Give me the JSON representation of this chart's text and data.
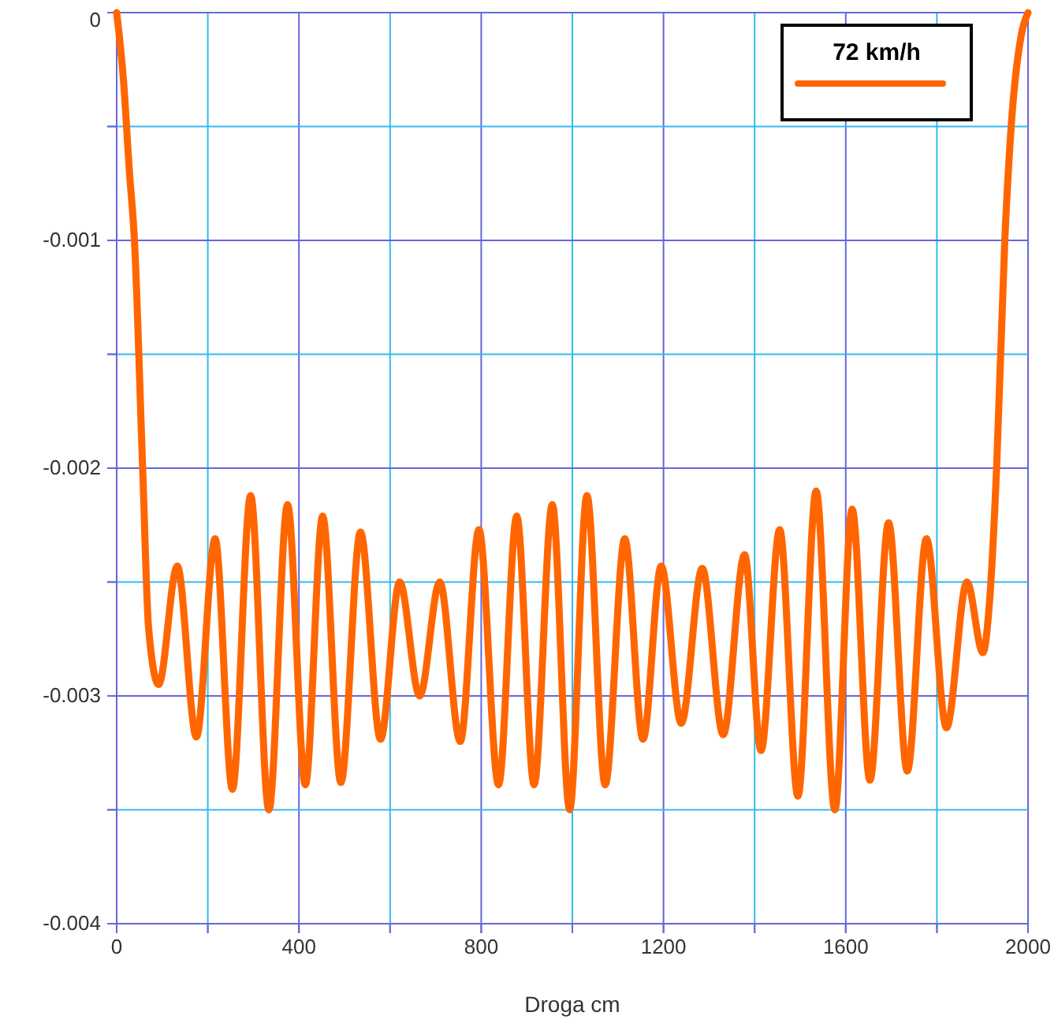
{
  "chart_data": {
    "type": "line",
    "xlabel": "Droga cm",
    "xlim": [
      0,
      2000
    ],
    "ylim": [
      -0.004,
      0
    ],
    "xticks": [
      0,
      {
        "value": 200,
        "label": null
      },
      400,
      {
        "value": 600,
        "label": null
      },
      800,
      {
        "value": 1000,
        "label": null
      },
      1200,
      {
        "value": 1400,
        "label": null
      },
      1600,
      {
        "value": 1800,
        "label": null
      },
      2000
    ],
    "yticks": [
      0,
      {
        "value": -0.0005,
        "label": null
      },
      -0.001,
      {
        "value": -0.0015,
        "label": null
      },
      -0.002,
      {
        "value": -0.0025,
        "label": null
      },
      -0.003,
      {
        "value": -0.0035,
        "label": null
      },
      -0.004
    ],
    "grid": true,
    "legend": "top right",
    "marker": "none",
    "line_style": "solid",
    "series": [
      {
        "name": "72 km/h",
        "color": "#ff6600",
        "x": [
          0,
          15,
          28,
          39,
          57,
          70,
          92,
          133,
          175,
          216,
          254,
          294,
          334,
          375,
          414,
          452,
          492,
          535,
          579,
          621,
          665,
          709,
          754,
          795,
          838,
          878,
          916,
          956,
          994,
          1032,
          1072,
          1115,
          1155,
          1195,
          1239,
          1285,
          1331,
          1378,
          1414,
          1455,
          1495,
          1535,
          1576,
          1614,
          1653,
          1694,
          1735,
          1777,
          1821,
          1866,
          1901,
          1915,
          1931,
          1949,
          1963,
          1985,
          2000
        ],
        "values": [
          0,
          -0.0003,
          -0.0007,
          -0.001,
          -0.002,
          -0.0027,
          -0.00295,
          -0.00243,
          -0.00318,
          -0.00231,
          -0.00341,
          -0.00212,
          -0.0035,
          -0.00216,
          -0.00339,
          -0.00221,
          -0.00338,
          -0.00228,
          -0.00319,
          -0.0025,
          -0.003,
          -0.0025,
          -0.0032,
          -0.00227,
          -0.00339,
          -0.00221,
          -0.00339,
          -0.00216,
          -0.0035,
          -0.00212,
          -0.00339,
          -0.00231,
          -0.00319,
          -0.00243,
          -0.00312,
          -0.00244,
          -0.00317,
          -0.00238,
          -0.00324,
          -0.00227,
          -0.00344,
          -0.0021,
          -0.0035,
          -0.00218,
          -0.00337,
          -0.00224,
          -0.00333,
          -0.00231,
          -0.00314,
          -0.0025,
          -0.00281,
          -0.0026,
          -0.002,
          -0.001,
          -0.0005,
          -0.0001,
          0
        ]
      }
    ]
  }
}
